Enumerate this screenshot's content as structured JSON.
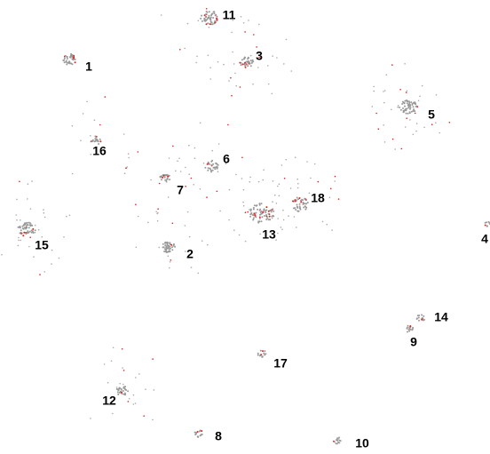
{
  "nodes": [
    {
      "label": "1"
    },
    {
      "label": "2"
    },
    {
      "label": "3"
    },
    {
      "label": "4"
    },
    {
      "label": "5"
    },
    {
      "label": "6"
    },
    {
      "label": "7"
    },
    {
      "label": "8"
    },
    {
      "label": "9"
    },
    {
      "label": "10"
    },
    {
      "label": "11"
    },
    {
      "label": "12"
    },
    {
      "label": "13"
    },
    {
      "label": "14"
    },
    {
      "label": "15"
    },
    {
      "label": "16"
    },
    {
      "label": "17"
    },
    {
      "label": "18"
    }
  ]
}
